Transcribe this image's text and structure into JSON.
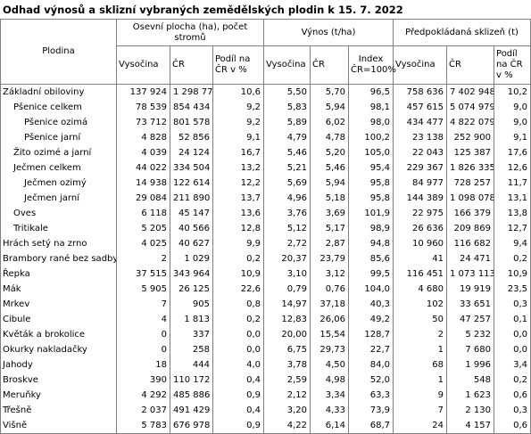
{
  "title": "Odhad výnosů a sklizní vybraných zemědělských plodin k 15. 7. 2022",
  "table": {
    "header": {
      "plodina": "Plodina",
      "groups": [
        "Osevní plocha (ha), počet stromů",
        "Výnos (t/ha)",
        "Předpokládaná sklizeň (t)"
      ],
      "columns": [
        "Vysočina",
        "ČR",
        "Podíl na ČR v %",
        "Vysočina",
        "ČR",
        "Index ČR=100%",
        "Vysočina",
        "ČR",
        "Podíl na ČR v %"
      ]
    },
    "rows": [
      [
        "Základní obiloviny",
        "137 924",
        "1 298 775",
        "10,6",
        "5,50",
        "5,70",
        "96,5",
        "758 636",
        "7 402 948",
        "10,2"
      ],
      [
        "Pšenice celkem",
        "78 539",
        "854 434",
        "9,2",
        "5,83",
        "5,94",
        "98,1",
        "457 615",
        "5 074 979",
        "9,0"
      ],
      [
        "Pšenice ozimá",
        "73 712",
        "801 578",
        "9,2",
        "5,89",
        "6,02",
        "98,0",
        "434 477",
        "4 822 079",
        "9,0"
      ],
      [
        "Pšenice jarní",
        "4 828",
        "52 856",
        "9,1",
        "4,79",
        "4,78",
        "100,2",
        "23 138",
        "252 900",
        "9,1"
      ],
      [
        "Žito ozimé a jarní",
        "4 039",
        "24 124",
        "16,7",
        "5,46",
        "5,20",
        "105,0",
        "22 043",
        "125 387",
        "17,6"
      ],
      [
        "Ječmen celkem",
        "44 022",
        "334 504",
        "13,2",
        "5,21",
        "5,46",
        "95,4",
        "229 367",
        "1 826 335",
        "12,6"
      ],
      [
        "Ječmen ozimý",
        "14 938",
        "122 614",
        "12,2",
        "5,69",
        "5,94",
        "95,8",
        "84 977",
        "728 257",
        "11,7"
      ],
      [
        "Ječmen jarní",
        "29 084",
        "211 890",
        "13,7",
        "4,96",
        "5,18",
        "95,8",
        "144 389",
        "1 098 078",
        "13,1"
      ],
      [
        "Oves",
        "6 118",
        "45 147",
        "13,6",
        "3,76",
        "3,69",
        "101,9",
        "22 975",
        "166 379",
        "13,8"
      ],
      [
        "Tritikale",
        "5 205",
        "40 566",
        "12,8",
        "5,12",
        "5,17",
        "98,9",
        "26 636",
        "209 869",
        "12,7"
      ],
      [
        "Hrách setý na zrno",
        "4 025",
        "40 627",
        "9,9",
        "2,72",
        "2,87",
        "94,8",
        "10 960",
        "116 682",
        "9,4"
      ],
      [
        "Brambory rané bez sadby",
        "2",
        "1 029",
        "0,2",
        "20,37",
        "23,79",
        "85,6",
        "41",
        "24 471",
        "0,2"
      ],
      [
        "Řepka",
        "37 515",
        "343 964",
        "10,9",
        "3,10",
        "3,12",
        "99,5",
        "116 451",
        "1 073 113",
        "10,9"
      ],
      [
        "Mák",
        "5 905",
        "26 125",
        "22,6",
        "0,79",
        "0,76",
        "104,0",
        "4 680",
        "19 919",
        "23,5"
      ],
      [
        "Mrkev",
        "7",
        "905",
        "0,8",
        "14,97",
        "37,18",
        "40,3",
        "102",
        "33 651",
        "0,3"
      ],
      [
        "Cibule",
        "4",
        "1 813",
        "0,2",
        "12,83",
        "26,06",
        "49,2",
        "50",
        "47 257",
        "0,1"
      ],
      [
        "Květák a brokolice",
        "0",
        "337",
        "0,0",
        "20,00",
        "15,54",
        "128,7",
        "2",
        "5 232",
        "0,0"
      ],
      [
        "Okurky nakladačky",
        "0",
        "258",
        "0,0",
        "6,75",
        "29,73",
        "22,7",
        "1",
        "7 680",
        "0,0"
      ],
      [
        "Jahody",
        "18",
        "444",
        "4,0",
        "3,78",
        "4,50",
        "84,0",
        "68",
        "1 996",
        "3,4"
      ],
      [
        "Broskve",
        "390",
        "110 172",
        "0,4",
        "2,59",
        "4,98",
        "52,0",
        "1",
        "548",
        "0,2"
      ],
      [
        "Meruňky",
        "4 292",
        "485 886",
        "0,9",
        "2,12",
        "3,34",
        "63,3",
        "9",
        "1 623",
        "0,6"
      ],
      [
        "Třešně",
        "2 037",
        "491 429",
        "0,4",
        "3,20",
        "4,33",
        "73,9",
        "7",
        "2 130",
        "0,3"
      ],
      [
        "Višně",
        "5 783",
        "676 978",
        "0,9",
        "4,22",
        "6,14",
        "68,7",
        "24",
        "4 157",
        "0,6"
      ]
    ]
  }
}
